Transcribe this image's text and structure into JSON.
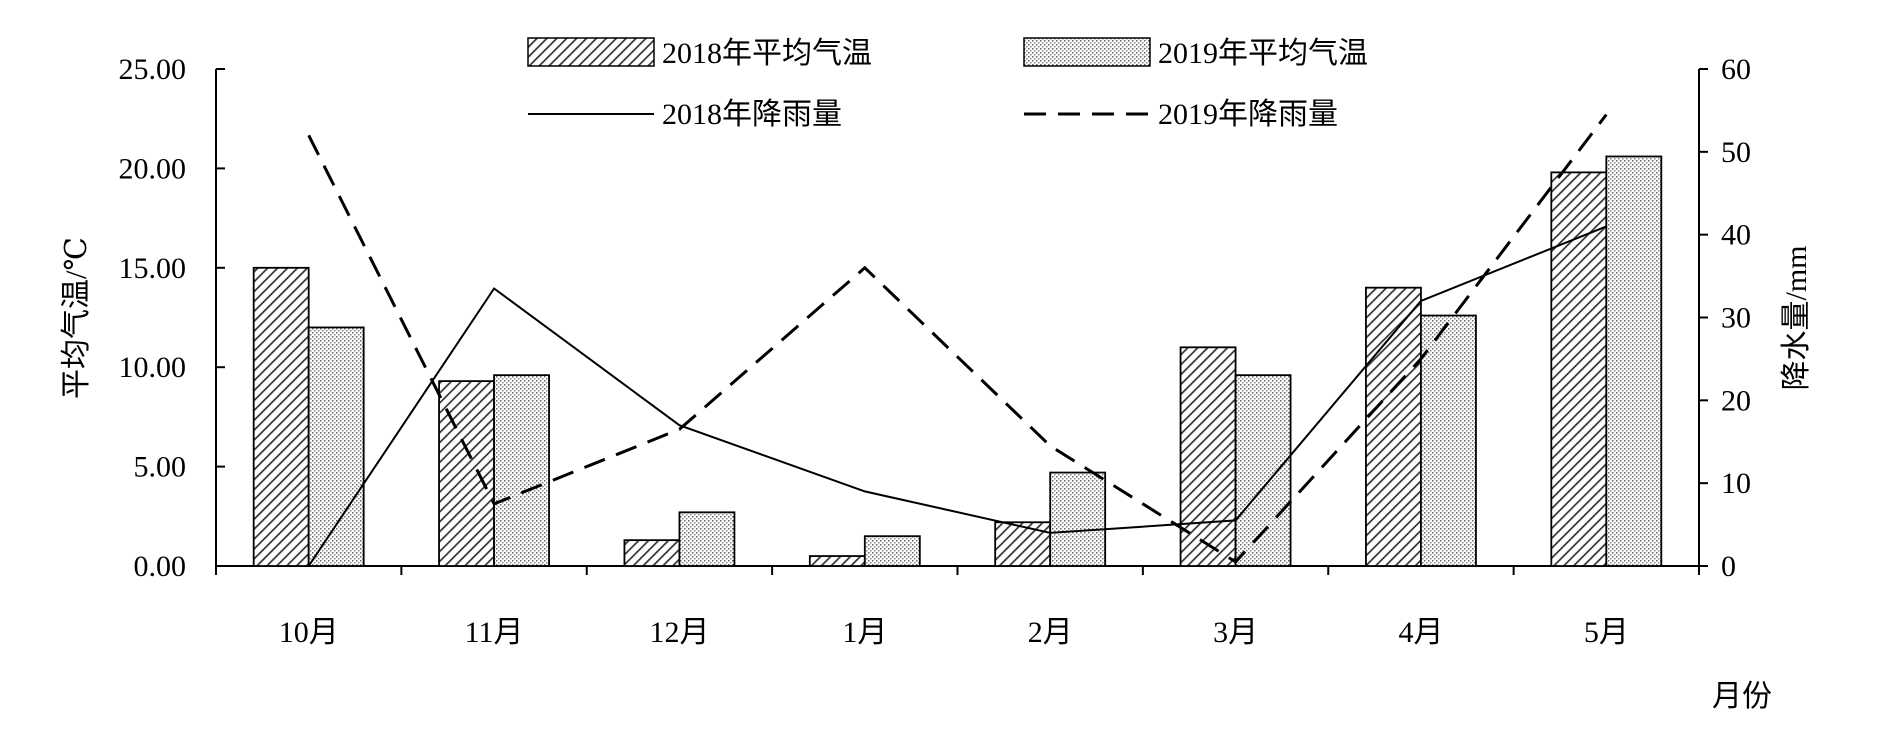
{
  "chart_data": {
    "type": "bar",
    "title": "",
    "xlabel": "月份",
    "ylabel": "平均气温/℃",
    "y2label": "降水量/mm",
    "categories": [
      "10月",
      "11月",
      "12月",
      "1月",
      "2月",
      "3月",
      "4月",
      "5月"
    ],
    "ylim": [
      0,
      25
    ],
    "yticks": [
      "0.00",
      "5.00",
      "10.00",
      "15.00",
      "20.00",
      "25.00"
    ],
    "y2lim": [
      0,
      60
    ],
    "y2ticks": [
      "0",
      "10",
      "20",
      "30",
      "40",
      "50",
      "60"
    ],
    "bar_series": [
      {
        "name": "2018年平均气温",
        "axis": "left",
        "pattern": "diagonal-hatch",
        "values": [
          15.0,
          9.3,
          1.3,
          0.5,
          2.2,
          11.0,
          14.0,
          19.8
        ]
      },
      {
        "name": "2019年平均气温",
        "axis": "left",
        "pattern": "dots",
        "values": [
          12.0,
          9.6,
          2.7,
          1.5,
          4.7,
          9.6,
          12.6,
          20.6
        ]
      }
    ],
    "line_series": [
      {
        "name": "2018年降雨量",
        "axis": "right",
        "style": "solid",
        "values": [
          0.0,
          33.5,
          17.0,
          9.0,
          4.0,
          5.5,
          32.0,
          41.0
        ]
      },
      {
        "name": "2019年降雨量",
        "axis": "right",
        "style": "dashed",
        "values": [
          52.0,
          7.5,
          16.5,
          36.0,
          14.5,
          0.5,
          25.0,
          54.5
        ]
      }
    ],
    "legend_position": "top-center",
    "grid": false
  }
}
